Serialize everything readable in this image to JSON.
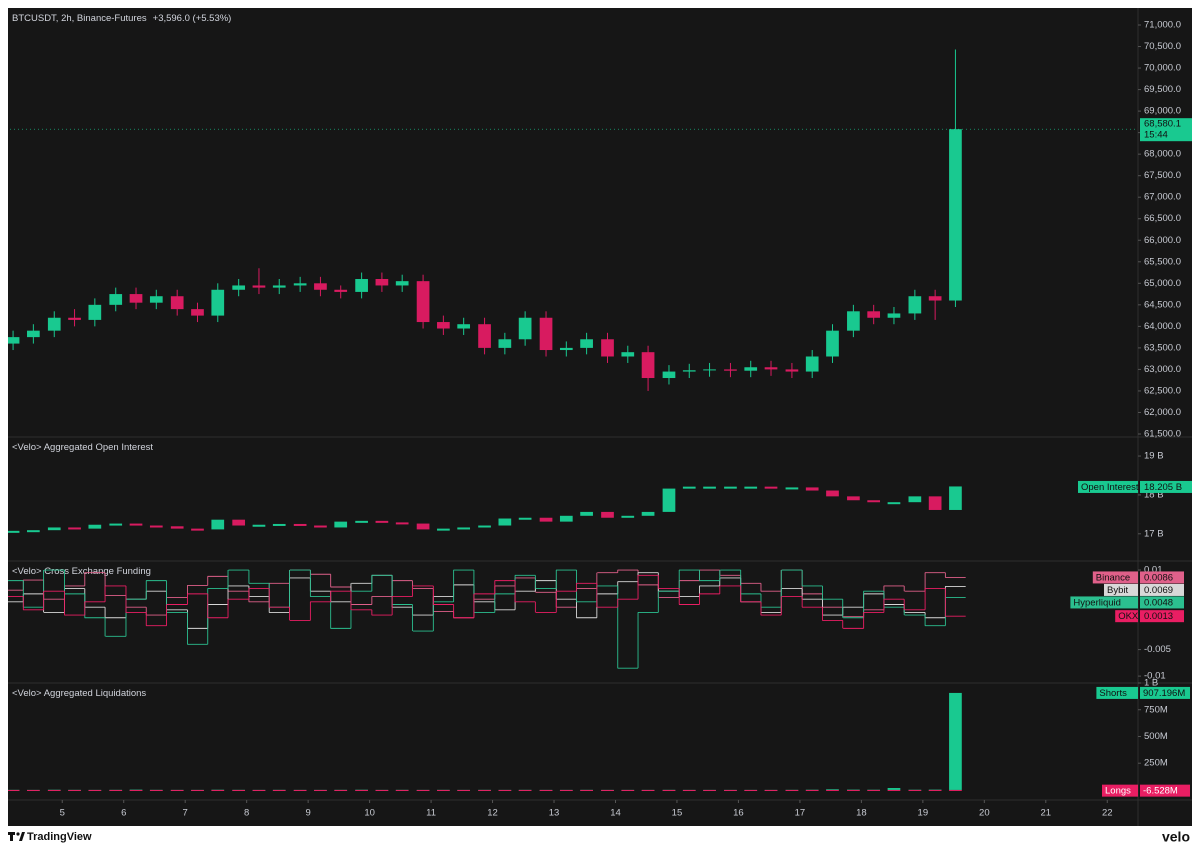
{
  "chart_data": [
    {
      "type": "candlestick",
      "title": "BTCUSDT, 2h, Binance-Futures",
      "subtitle": "+3,596.0 (+5.53%)",
      "countdown": "15:44",
      "up_color": "#19c990",
      "down_color": "#d81b60",
      "x": [
        4.2,
        4.53,
        4.87,
        5.2,
        5.53,
        5.87,
        6.2,
        6.53,
        6.87,
        7.2,
        7.53,
        7.87,
        8.2,
        8.53,
        8.87,
        9.2,
        9.53,
        9.87,
        10.2,
        10.53,
        10.87,
        11.2,
        11.53,
        11.87,
        12.2,
        12.53,
        12.87,
        13.2,
        13.53,
        13.87,
        14.2,
        14.53,
        14.87,
        15.2,
        15.53,
        15.87,
        16.2,
        16.53,
        16.87,
        17.2,
        17.53,
        17.87,
        18.2,
        18.53,
        18.87,
        19.2,
        19.53
      ],
      "xlim": [
        4.15,
        22.5
      ],
      "xticks": [
        5,
        6,
        7,
        8,
        9,
        10,
        11,
        12,
        13,
        14,
        15,
        16,
        17,
        18,
        19,
        20,
        21,
        22
      ],
      "open": [
        63600,
        63750,
        63900,
        64200,
        64150,
        64500,
        64750,
        64550,
        64700,
        64400,
        64250,
        64850,
        64950,
        64900,
        64950,
        65000,
        64850,
        64800,
        65100,
        64950,
        65050,
        64100,
        63950,
        64050,
        63500,
        63700,
        64200,
        63450,
        63500,
        63700,
        63300,
        63400,
        62800,
        62950,
        62980,
        63000,
        62970,
        63050,
        63000,
        62950,
        63300,
        63900,
        64350,
        64200,
        64300,
        64700,
        64600
      ],
      "high": [
        63900,
        64050,
        64350,
        64400,
        64650,
        64900,
        64900,
        64850,
        64850,
        64550,
        65000,
        65100,
        65350,
        65100,
        65150,
        65150,
        64950,
        65250,
        65250,
        65200,
        65200,
        64250,
        64200,
        64200,
        63850,
        64350,
        64350,
        63650,
        63850,
        63850,
        63550,
        63550,
        63100,
        63130,
        63150,
        63150,
        63200,
        63200,
        63150,
        63450,
        64050,
        64500,
        64500,
        64450,
        64850,
        64850,
        70430
      ],
      "low": [
        63450,
        63600,
        63750,
        64000,
        64000,
        64350,
        64400,
        64400,
        64250,
        64100,
        64100,
        64700,
        64750,
        64750,
        64800,
        64700,
        64650,
        64650,
        64800,
        64800,
        63950,
        63800,
        63800,
        63350,
        63350,
        63550,
        63300,
        63300,
        63350,
        63150,
        63150,
        62500,
        62650,
        62800,
        62830,
        62820,
        62820,
        62850,
        62800,
        62800,
        63150,
        63750,
        64050,
        64050,
        64150,
        64150,
        64450
      ],
      "close": [
        63750,
        63900,
        64200,
        64150,
        64500,
        64750,
        64550,
        64700,
        64400,
        64250,
        64850,
        64950,
        64900,
        64950,
        65000,
        64850,
        64800,
        65100,
        64950,
        65050,
        64100,
        63950,
        64050,
        63500,
        63700,
        64200,
        63450,
        63500,
        63700,
        63300,
        63400,
        62800,
        62950,
        62980,
        63000,
        62970,
        63050,
        63000,
        62950,
        63300,
        63900,
        64350,
        64200,
        64300,
        64700,
        64600,
        68580
      ],
      "value_labels": [
        null,
        null,
        null,
        null,
        null,
        null,
        null,
        null,
        null,
        null,
        null,
        null,
        null,
        null,
        null,
        null,
        null,
        null,
        null,
        null,
        null,
        null,
        null,
        null,
        null,
        null,
        null,
        null,
        null,
        null,
        null,
        null,
        null,
        null,
        null,
        null,
        null,
        null,
        null,
        null,
        null,
        null,
        null,
        null,
        null,
        null,
        "68,580.1"
      ],
      "ylim": [
        61430,
        71395
      ],
      "yticks": [
        {
          "value": 71000,
          "label": "71,000.0"
        },
        {
          "value": 70500,
          "label": "70,500.0"
        },
        {
          "value": 70000,
          "label": "70,000.0"
        },
        {
          "value": 69500,
          "label": "69,500.0"
        },
        {
          "value": 69000,
          "label": "69,000.0"
        },
        {
          "value": 68500,
          "label": "68,500.0"
        },
        {
          "value": 68000,
          "label": "68,000.0"
        },
        {
          "value": 67500,
          "label": "67,500.0"
        },
        {
          "value": 67000,
          "label": "67,000.0"
        },
        {
          "value": 66500,
          "label": "66,500.0"
        },
        {
          "value": 66000,
          "label": "66,000.0"
        },
        {
          "value": 65500,
          "label": "65,500.0"
        },
        {
          "value": 65000,
          "label": "65,000.0"
        },
        {
          "value": 64500,
          "label": "64,500.0"
        },
        {
          "value": 64000,
          "label": "64,000.0"
        },
        {
          "value": 63500,
          "label": "63,500.0"
        },
        {
          "value": 63000,
          "label": "63,000.0"
        },
        {
          "value": 62500,
          "label": "62,500.0"
        },
        {
          "value": 62000,
          "label": "62,000.0"
        },
        {
          "value": 61500,
          "label": "61,500.0"
        }
      ]
    },
    {
      "type": "line",
      "title": "<Velo> Aggregated Open Interest",
      "name": "Open Interest",
      "up_color": "#19c990",
      "down_color": "#d81b60",
      "values": [
        17.05,
        17.08,
        17.15,
        17.12,
        17.22,
        17.25,
        17.2,
        17.18,
        17.12,
        17.1,
        17.35,
        17.2,
        17.22,
        17.24,
        17.2,
        17.15,
        17.3,
        17.32,
        17.28,
        17.25,
        17.1,
        17.12,
        17.15,
        17.2,
        17.38,
        17.4,
        17.3,
        17.45,
        17.55,
        17.4,
        17.45,
        17.55,
        18.15,
        18.2,
        18.2,
        18.2,
        18.2,
        18.18,
        18.18,
        18.1,
        17.95,
        17.85,
        17.8,
        17.8,
        17.95,
        17.6,
        18.205
      ],
      "value_labels": [
        null,
        null,
        null,
        null,
        null,
        null,
        null,
        null,
        null,
        null,
        null,
        null,
        null,
        null,
        null,
        null,
        null,
        null,
        null,
        null,
        null,
        null,
        null,
        null,
        null,
        null,
        null,
        null,
        null,
        null,
        null,
        null,
        null,
        null,
        null,
        null,
        null,
        null,
        null,
        null,
        null,
        null,
        null,
        null,
        null,
        null,
        "18.205 B"
      ],
      "ylim": [
        16.3,
        19.49
      ],
      "yticks": [
        {
          "value": 19,
          "label": "19 B"
        },
        {
          "value": 18,
          "label": "18 B"
        },
        {
          "value": 17,
          "label": "17 B"
        }
      ]
    },
    {
      "type": "step",
      "title": "<Velo> Cross Exchange Funding",
      "ylim": [
        -0.0113,
        0.0117
      ],
      "yticks": [
        0.01,
        -0.005,
        -0.01
      ],
      "series": [
        {
          "name": "Binance",
          "color": "#e0608a",
          "values": [
            0.0062,
            0.0081,
            0.0045,
            0.007,
            0.0095,
            0.0052,
            0.003,
            0.0015,
            0.0048,
            0.0071,
            0.0088,
            0.006,
            0.004,
            0.0075,
            0.01,
            0.0092,
            0.0068,
            0.0035,
            0.005,
            0.008,
            0.0065,
            0.0022,
            0.001,
            0.0045,
            0.007,
            0.0085,
            0.0058,
            0.003,
            0.0065,
            0.0095,
            0.01,
            0.0072,
            0.0048,
            0.008,
            0.01,
            0.009,
            0.0075,
            0.006,
            0.01,
            0.0055,
            0.003,
            0.0012,
            0.0025,
            0.007,
            0.006,
            0.0095,
            0.0086
          ]
        },
        {
          "name": "Bybit",
          "color": "#d8d8d8",
          "values": [
            0.004,
            0.0055,
            0.002,
            0.0065,
            0.003,
            0.001,
            0.0045,
            0.006,
            0.0025,
            -0.001,
            0.0035,
            0.007,
            0.005,
            0.002,
            0.0085,
            0.006,
            0.004,
            0.0075,
            0.009,
            0.003,
            0.0015,
            0.005,
            0.0072,
            0.004,
            0.0025,
            0.006,
            0.008,
            0.0045,
            0.001,
            0.0055,
            0.0078,
            0.0095,
            0.006,
            0.005,
            0.007,
            0.0085,
            0.004,
            0.002,
            0.0065,
            0.0045,
            0.0015,
            0.003,
            0.0055,
            0.0035,
            0.002,
            0.001,
            0.0069
          ]
        },
        {
          "name": "Hyperliquid",
          "color": "#2bbf8f",
          "values": [
            0.008,
            0.003,
            0.01,
            0.0055,
            0.001,
            -0.0025,
            0.0045,
            0.008,
            0.002,
            -0.004,
            0.0065,
            0.01,
            0.0075,
            0.003,
            0.01,
            0.005,
            -0.001,
            0.006,
            0.009,
            0.0035,
            -0.0015,
            0.004,
            0.01,
            0.002,
            0.0055,
            0.009,
            0.0065,
            0.01,
            0.004,
            0.007,
            -0.0085,
            0.002,
            0.006,
            0.01,
            0.008,
            0.01,
            0.0055,
            0.003,
            0.01,
            0.007,
            0.0045,
            0.001,
            0.006,
            0.003,
            0.0015,
            -0.0005,
            0.0048
          ]
        },
        {
          "name": "OKX",
          "color": "#e91e63",
          "values": [
            0.005,
            0.0025,
            0.006,
            0.0015,
            0.004,
            0.007,
            0.002,
            -0.0005,
            0.0035,
            0.0055,
            0.001,
            0.0045,
            0.0065,
            0.003,
            0.0005,
            0.004,
            0.006,
            0.0025,
            0.0015,
            0.005,
            0.007,
            0.0035,
            0.001,
            0.0055,
            0.008,
            0.004,
            0.002,
            0.006,
            0.0075,
            0.003,
            0.0045,
            0.009,
            0.0065,
            0.0035,
            0.0055,
            0.007,
            0.004,
            0.0015,
            0.005,
            0.003,
            0.0005,
            -0.001,
            0.002,
            0.0045,
            0.0025,
            0.0065,
            0.0013
          ]
        }
      ]
    },
    {
      "type": "bar",
      "title": "<Velo> Aggregated Liquidations",
      "ylim": [
        -94,
        1000
      ],
      "yticks": [
        {
          "value": 1000,
          "label": "1 B"
        },
        {
          "value": 750,
          "label": "750M"
        },
        {
          "value": 500,
          "label": "500M"
        },
        {
          "value": 250,
          "label": "250M"
        }
      ],
      "series": [
        {
          "name": "Shorts",
          "color": "#19c990",
          "values": [
            1,
            0.5,
            2,
            1,
            0.5,
            1,
            3,
            1,
            0.5,
            0.5,
            2,
            1,
            0.5,
            1,
            0.5,
            0.5,
            1,
            2,
            0.5,
            1,
            0.5,
            1,
            0.5,
            1,
            0.5,
            1,
            0.5,
            0.5,
            1,
            0.5,
            0.5,
            0.5,
            1,
            0.5,
            0.5,
            0.5,
            0.5,
            0.5,
            1,
            2,
            6,
            3,
            2,
            18,
            2,
            3,
            907.196
          ],
          "value_labels": [
            null,
            null,
            null,
            null,
            null,
            null,
            null,
            null,
            null,
            null,
            null,
            null,
            null,
            null,
            null,
            null,
            null,
            null,
            null,
            null,
            null,
            null,
            null,
            null,
            null,
            null,
            null,
            null,
            null,
            null,
            null,
            null,
            null,
            null,
            null,
            null,
            null,
            null,
            null,
            null,
            null,
            null,
            null,
            null,
            null,
            null,
            "907.196M"
          ]
        },
        {
          "name": "Longs",
          "color": "#e91e63",
          "values": [
            -2,
            -1,
            -1.5,
            -3,
            -1,
            -2,
            -1,
            -2.5,
            -1,
            -2,
            -1,
            -1.5,
            -1,
            -2,
            -1,
            -3,
            -2,
            -1,
            -2,
            -1,
            -4,
            -3,
            -2,
            -3,
            -1.5,
            -2,
            -3,
            -1,
            -1.5,
            -2,
            -1,
            -3,
            -1,
            -1,
            -0.5,
            -1,
            -0.5,
            -1,
            -0.5,
            -1,
            -1,
            -1.5,
            -2,
            -1,
            -2,
            -1.5,
            -6.528
          ],
          "value_labels": [
            null,
            null,
            null,
            null,
            null,
            null,
            null,
            null,
            null,
            null,
            null,
            null,
            null,
            null,
            null,
            null,
            null,
            null,
            null,
            null,
            null,
            null,
            null,
            null,
            null,
            null,
            null,
            null,
            null,
            null,
            null,
            null,
            null,
            null,
            null,
            null,
            null,
            null,
            null,
            null,
            null,
            null,
            null,
            null,
            null,
            null,
            "-6.528M"
          ]
        }
      ]
    }
  ],
  "footer": {
    "brand": "TradingView",
    "watermark": "velo"
  }
}
